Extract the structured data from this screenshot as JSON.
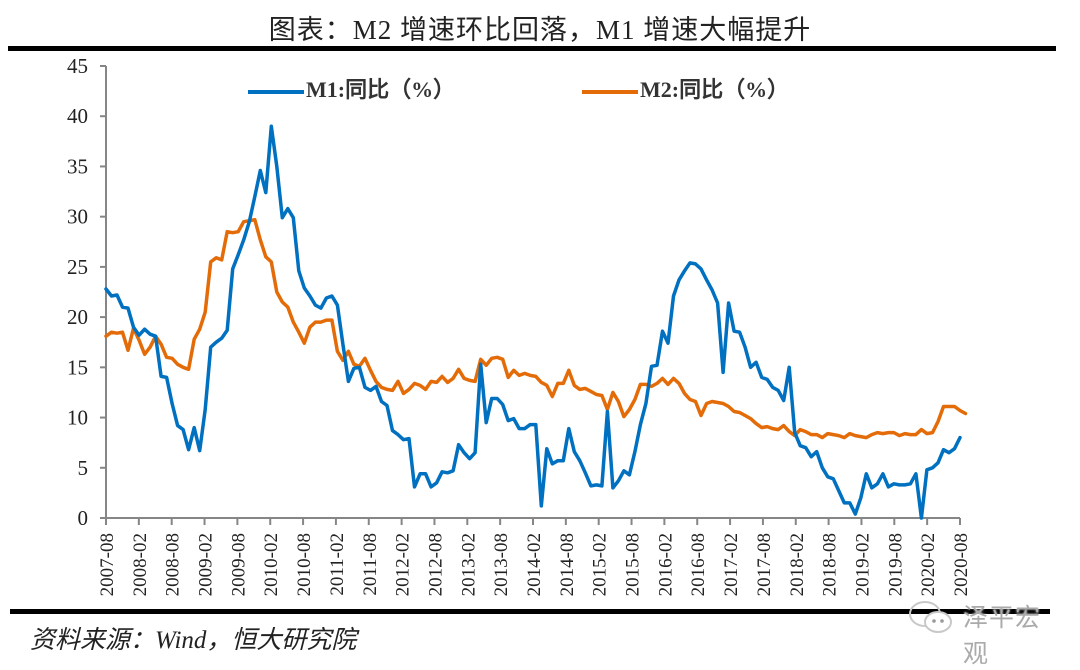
{
  "header": {
    "title": "图表：M2 增速环比回落，M1 增速大幅提升"
  },
  "footer": {
    "source": "资料来源：Wind，恒大研究院",
    "watermark": "泽平宏观"
  },
  "colors": {
    "m1": "#0070C0",
    "m2": "#E36C09",
    "axis": "#868686"
  },
  "chart_data": {
    "type": "line",
    "title": "图表：M2 增速环比回落，M1 增速大幅提升",
    "xlabel": "",
    "ylabel": "",
    "ylim": [
      0,
      45
    ],
    "yticks": [
      "0",
      "5",
      "10",
      "15",
      "20",
      "25",
      "30",
      "35",
      "40",
      "45"
    ],
    "xticks": [
      "2007-08",
      "2008-02",
      "2008-08",
      "2009-02",
      "2009-08",
      "2010-02",
      "2010-08",
      "2011-02",
      "2011-08",
      "2012-02",
      "2012-08",
      "2013-02",
      "2013-08",
      "2014-02",
      "2014-08",
      "2015-02",
      "2015-08",
      "2016-02",
      "2016-08",
      "2017-02",
      "2017-08",
      "2018-02",
      "2018-08",
      "2019-02",
      "2019-08",
      "2020-02",
      "2020-08"
    ],
    "x_start": "2007-08",
    "x_end": "2020-08",
    "frequency": "monthly",
    "legend_position": "top",
    "grid": false,
    "series": [
      {
        "name": "M1:同比（%）",
        "values": [
          22.8,
          22.1,
          22.2,
          21.0,
          20.9,
          19.0,
          18.2,
          18.8,
          18.3,
          18.1,
          14.1,
          14.0,
          11.4,
          9.2,
          8.8,
          6.8,
          9.0,
          6.7,
          10.8,
          17.0,
          17.5,
          17.9,
          18.7,
          24.8,
          26.2,
          27.7,
          29.5,
          32.0,
          34.6,
          32.4,
          39.0,
          35.0,
          29.9,
          30.8,
          29.9,
          24.6,
          22.9,
          22.1,
          21.2,
          20.9,
          21.9,
          22.1,
          21.2,
          17.3,
          13.6,
          14.9,
          15.0,
          13.0,
          12.7,
          13.1,
          11.6,
          11.2,
          8.7,
          8.3,
          7.8,
          7.9,
          3.1,
          4.4,
          4.4,
          3.1,
          3.5,
          4.6,
          4.5,
          4.7,
          7.3,
          6.5,
          5.9,
          6.5,
          15.3,
          9.5,
          11.9,
          11.9,
          11.3,
          9.7,
          9.9,
          8.9,
          8.9,
          9.3,
          9.3,
          1.2,
          6.9,
          5.4,
          5.7,
          5.7,
          8.9,
          6.6,
          5.7,
          4.5,
          3.2,
          3.3,
          3.2,
          10.6,
          3.0,
          3.7,
          4.7,
          4.3,
          6.6,
          9.3,
          11.4,
          15.1,
          15.2,
          18.6,
          17.4,
          22.1,
          23.7,
          24.6,
          25.4,
          25.3,
          24.8,
          23.7,
          22.7,
          21.4,
          14.5,
          21.4,
          18.6,
          18.5,
          17.0,
          15.0,
          15.5,
          14.0,
          13.8,
          13.0,
          12.7,
          11.7,
          15.0,
          8.5,
          7.2,
          7.0,
          6.1,
          6.6,
          5.0,
          4.1,
          3.9,
          2.7,
          1.5,
          1.5,
          0.4,
          2.0,
          4.4,
          3.0,
          3.4,
          4.4,
          3.1,
          3.4,
          3.3,
          3.3,
          3.4,
          4.4,
          0.0,
          4.8,
          5.0,
          5.5,
          6.8,
          6.5,
          6.9,
          8.0
        ]
      },
      {
        "name": "M2:同比（%）",
        "values": [
          18.1,
          18.5,
          18.4,
          18.5,
          16.7,
          18.9,
          17.7,
          16.3,
          17.0,
          18.1,
          17.3,
          16.0,
          15.9,
          15.3,
          15.0,
          14.8,
          17.8,
          18.8,
          20.5,
          25.5,
          25.9,
          25.7,
          28.5,
          28.4,
          28.5,
          29.5,
          29.6,
          29.7,
          27.7,
          26.0,
          25.5,
          22.5,
          21.5,
          21.0,
          19.5,
          18.5,
          17.4,
          19.0,
          19.5,
          19.5,
          19.7,
          19.7,
          16.6,
          15.7,
          16.6,
          15.3,
          15.1,
          15.9,
          14.7,
          13.6,
          13.0,
          12.8,
          12.7,
          13.6,
          12.4,
          12.8,
          13.4,
          13.2,
          12.8,
          13.6,
          13.5,
          14.1,
          13.5,
          13.9,
          14.8,
          13.9,
          13.7,
          13.6,
          15.8,
          15.2,
          15.9,
          16.0,
          15.8,
          14.0,
          14.7,
          14.2,
          14.4,
          14.2,
          14.1,
          13.5,
          13.2,
          12.1,
          13.4,
          13.4,
          14.7,
          13.2,
          12.8,
          12.9,
          12.6,
          12.3,
          12.2,
          10.8,
          12.5,
          11.6,
          10.1,
          10.8,
          11.8,
          13.3,
          13.3,
          13.1,
          13.4,
          13.9,
          13.3,
          13.9,
          13.4,
          12.4,
          11.8,
          11.6,
          10.2,
          11.4,
          11.6,
          11.5,
          11.4,
          11.1,
          10.6,
          10.5,
          10.2,
          9.9,
          9.4,
          9.0,
          9.1,
          8.9,
          8.8,
          9.2,
          8.6,
          8.2,
          8.8,
          8.6,
          8.3,
          8.3,
          8.0,
          8.4,
          8.3,
          8.2,
          8.0,
          8.4,
          8.2,
          8.1,
          8.0,
          8.3,
          8.5,
          8.4,
          8.5,
          8.5,
          8.2,
          8.4,
          8.3,
          8.3,
          8.8,
          8.4,
          8.5,
          9.6,
          11.1,
          11.1,
          11.1,
          10.7,
          10.4
        ]
      }
    ]
  }
}
